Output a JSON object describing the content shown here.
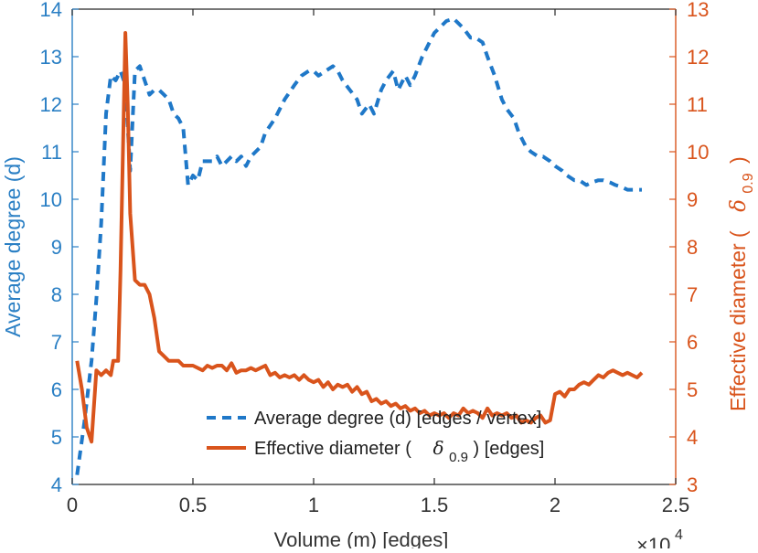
{
  "chart_data": {
    "type": "line",
    "xlabel": "Volume (m) [edges]",
    "x_multiplier": "×10",
    "x_multiplier_exponent": "4",
    "xlim": [
      0,
      2.5
    ],
    "x_ticks": [
      0,
      0.5,
      1,
      1.5,
      2,
      2.5
    ],
    "x_tick_labels": [
      "0",
      "0.5",
      "1",
      "1.5",
      "2",
      "2.5"
    ],
    "y_left": {
      "label": "Average degree (d)",
      "lim": [
        4,
        14
      ],
      "ticks": [
        4,
        5,
        6,
        7,
        8,
        9,
        10,
        11,
        12,
        13,
        14
      ],
      "tick_labels": [
        "4",
        "5",
        "6",
        "7",
        "8",
        "9",
        "10",
        "11",
        "12",
        "13",
        "14"
      ],
      "color": "#2a7fc4"
    },
    "y_right": {
      "label": "Effective diameter (",
      "label_symbol": "δ",
      "label_subscript": "0.9",
      "label_close": ")",
      "lim": [
        3,
        13
      ],
      "ticks": [
        3,
        4,
        5,
        6,
        7,
        8,
        9,
        10,
        11,
        12,
        13
      ],
      "tick_labels": [
        "3",
        "4",
        "5",
        "6",
        "7",
        "8",
        "9",
        "10",
        "11",
        "12",
        "13"
      ],
      "color": "#d9541c"
    },
    "series": [
      {
        "name": "Average degree (d) [edges / vertex]",
        "axis": "left",
        "style": "dashed",
        "color": "#1f78c8",
        "x": [
          0.02,
          0.05,
          0.08,
          0.1,
          0.12,
          0.14,
          0.16,
          0.18,
          0.2,
          0.22,
          0.24,
          0.26,
          0.28,
          0.3,
          0.32,
          0.34,
          0.36,
          0.38,
          0.4,
          0.42,
          0.44,
          0.46,
          0.48,
          0.5,
          0.52,
          0.54,
          0.56,
          0.58,
          0.6,
          0.62,
          0.64,
          0.66,
          0.68,
          0.7,
          0.72,
          0.74,
          0.76,
          0.78,
          0.8,
          0.84,
          0.88,
          0.92,
          0.95,
          0.98,
          1.0,
          1.02,
          1.05,
          1.08,
          1.1,
          1.12,
          1.15,
          1.18,
          1.2,
          1.23,
          1.25,
          1.28,
          1.3,
          1.33,
          1.35,
          1.38,
          1.4,
          1.42,
          1.45,
          1.48,
          1.5,
          1.52,
          1.55,
          1.58,
          1.6,
          1.62,
          1.65,
          1.67,
          1.7,
          1.72,
          1.75,
          1.78,
          1.8,
          1.83,
          1.85,
          1.88,
          1.9,
          1.93,
          1.95,
          1.98,
          2.0,
          2.03,
          2.05,
          2.08,
          2.1,
          2.13,
          2.15,
          2.18,
          2.2,
          2.23,
          2.25,
          2.28,
          2.3,
          2.33,
          2.36
        ],
        "y": [
          4.2,
          5.3,
          6.6,
          7.9,
          9.5,
          11.8,
          12.6,
          12.5,
          12.7,
          12.4,
          10.6,
          12.7,
          12.8,
          12.5,
          12.2,
          12.3,
          12.3,
          12.2,
          12.1,
          11.8,
          11.7,
          11.5,
          10.3,
          10.5,
          10.4,
          10.8,
          10.8,
          10.8,
          10.9,
          10.7,
          10.8,
          10.9,
          10.8,
          10.9,
          10.7,
          10.9,
          11.0,
          11.1,
          11.4,
          11.7,
          12.1,
          12.4,
          12.6,
          12.7,
          12.7,
          12.6,
          12.7,
          12.8,
          12.7,
          12.5,
          12.3,
          12.1,
          11.8,
          12.0,
          11.8,
          12.3,
          12.5,
          12.7,
          12.3,
          12.6,
          12.4,
          12.6,
          13.0,
          13.3,
          13.5,
          13.6,
          13.75,
          13.8,
          13.7,
          13.6,
          13.4,
          13.4,
          13.3,
          13.0,
          12.6,
          12.1,
          11.9,
          11.7,
          11.4,
          11.1,
          11.0,
          10.9,
          10.9,
          10.8,
          10.7,
          10.6,
          10.5,
          10.4,
          10.4,
          10.3,
          10.35,
          10.4,
          10.4,
          10.35,
          10.3,
          10.25,
          10.2,
          10.2,
          10.2
        ]
      },
      {
        "name": "Effective diameter (",
        "name_symbol": "δ",
        "name_subscript": "0.9",
        "name_tail": ") [edges]",
        "axis": "right",
        "style": "solid",
        "color": "#d9541c",
        "x": [
          0.02,
          0.04,
          0.06,
          0.08,
          0.1,
          0.12,
          0.14,
          0.16,
          0.17,
          0.19,
          0.2,
          0.22,
          0.23,
          0.24,
          0.26,
          0.28,
          0.3,
          0.32,
          0.34,
          0.36,
          0.38,
          0.4,
          0.42,
          0.44,
          0.46,
          0.48,
          0.5,
          0.52,
          0.54,
          0.56,
          0.58,
          0.6,
          0.62,
          0.64,
          0.66,
          0.68,
          0.7,
          0.72,
          0.74,
          0.76,
          0.78,
          0.8,
          0.82,
          0.84,
          0.86,
          0.88,
          0.9,
          0.92,
          0.94,
          0.96,
          0.98,
          1.0,
          1.02,
          1.04,
          1.06,
          1.08,
          1.1,
          1.12,
          1.14,
          1.16,
          1.18,
          1.2,
          1.22,
          1.24,
          1.26,
          1.28,
          1.3,
          1.32,
          1.34,
          1.36,
          1.38,
          1.4,
          1.42,
          1.44,
          1.46,
          1.48,
          1.5,
          1.52,
          1.54,
          1.56,
          1.58,
          1.6,
          1.62,
          1.64,
          1.66,
          1.68,
          1.7,
          1.72,
          1.74,
          1.76,
          1.78,
          1.8,
          1.82,
          1.84,
          1.86,
          1.88,
          1.9,
          1.92,
          1.94,
          1.96,
          1.98,
          2.0,
          2.02,
          2.04,
          2.06,
          2.08,
          2.1,
          2.12,
          2.14,
          2.16,
          2.18,
          2.2,
          2.22,
          2.24,
          2.26,
          2.28,
          2.3,
          2.32,
          2.34,
          2.36
        ],
        "y": [
          5.6,
          5.0,
          4.2,
          3.9,
          5.4,
          5.3,
          5.4,
          5.3,
          5.6,
          5.6,
          7.5,
          12.5,
          11.0,
          8.7,
          7.3,
          7.2,
          7.2,
          7.0,
          6.5,
          5.8,
          5.7,
          5.6,
          5.6,
          5.6,
          5.5,
          5.5,
          5.5,
          5.45,
          5.4,
          5.5,
          5.45,
          5.5,
          5.5,
          5.4,
          5.55,
          5.35,
          5.4,
          5.4,
          5.45,
          5.4,
          5.45,
          5.5,
          5.3,
          5.35,
          5.25,
          5.3,
          5.25,
          5.3,
          5.2,
          5.3,
          5.2,
          5.15,
          5.2,
          5.05,
          5.15,
          5.0,
          5.1,
          5.05,
          5.1,
          4.95,
          5.05,
          4.9,
          4.95,
          4.75,
          4.8,
          4.7,
          4.75,
          4.65,
          4.7,
          4.6,
          4.65,
          4.55,
          4.6,
          4.5,
          4.55,
          4.45,
          4.5,
          4.45,
          4.5,
          4.4,
          4.5,
          4.45,
          4.6,
          4.5,
          4.55,
          4.5,
          4.4,
          4.6,
          4.45,
          4.5,
          4.45,
          4.5,
          4.4,
          4.45,
          4.3,
          4.35,
          4.3,
          4.4,
          4.45,
          4.3,
          4.35,
          4.9,
          4.95,
          4.85,
          5.0,
          5.0,
          5.1,
          5.15,
          5.1,
          5.2,
          5.3,
          5.25,
          5.35,
          5.4,
          5.35,
          5.3,
          5.35,
          5.3,
          5.25,
          5.35
        ]
      }
    ]
  }
}
